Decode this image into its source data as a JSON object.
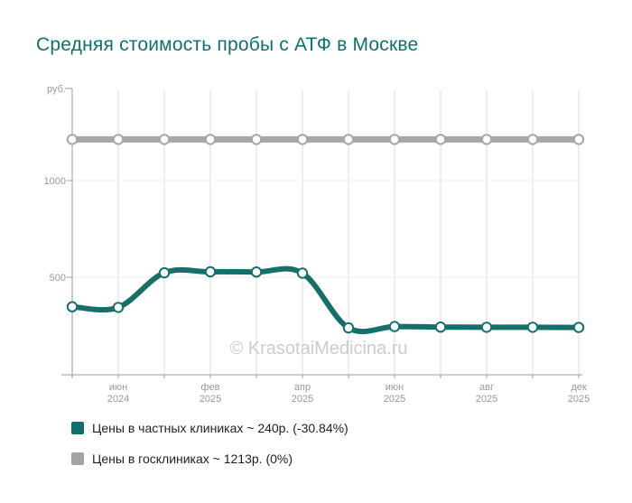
{
  "title": "Средняя стоимость пробы с АТФ в Москве",
  "watermark": "© KrasotaiMedicina.ru",
  "colors": {
    "background": "#ffffff",
    "title": "#0d7170",
    "private_series": "#176f6b",
    "state_series": "#a6a6a6",
    "axis": "#9e9e9e",
    "grid_vertical": "#dcdcdc",
    "grid_horizontal": "#ececec",
    "tick_label": "#999999",
    "watermark": "#cccccc",
    "legend_text": "#1f1f1f"
  },
  "chart_data": {
    "type": "line",
    "title": "Средняя стоимость пробы с АТФ в Москве",
    "xlabel": "",
    "ylabel": "руб.",
    "y_unit_label": "руб.",
    "ylim": [
      0,
      1465
    ],
    "y_grid_values": [
      1000,
      500
    ],
    "y_tick_labels": [
      "1000",
      "500"
    ],
    "grid": true,
    "legend_position": "bottom",
    "points_count": 12,
    "categories": [
      "",
      "июн 2024",
      "",
      "фев 2025",
      "",
      "апр 2025",
      "",
      "июн 2025",
      "",
      "авг 2025",
      "",
      "дек 2025"
    ],
    "x_ticks": [
      {
        "index": 1,
        "month": "июн",
        "year": "2024"
      },
      {
        "index": 3,
        "month": "фев",
        "year": "2025"
      },
      {
        "index": 5,
        "month": "апр",
        "year": "2025"
      },
      {
        "index": 7,
        "month": "июн",
        "year": "2025"
      },
      {
        "index": 9,
        "month": "авг",
        "year": "2025"
      },
      {
        "index": 11,
        "month": "дек",
        "year": "2025"
      }
    ],
    "series": [
      {
        "name": "Цены в госклиниках",
        "color": "#a6a6a6",
        "marker": "white-circle",
        "current_value": "1213р.",
        "change": "0%",
        "values": [
          1213,
          1213,
          1213,
          1213,
          1213,
          1213,
          1213,
          1213,
          1213,
          1213,
          1213,
          1213
        ]
      },
      {
        "name": "Цены в частных клиниках",
        "color": "#176f6b",
        "marker": "white-circle",
        "current_value": "240р.",
        "change": "-30.84%",
        "values": [
          347,
          344,
          523,
          528,
          527,
          521,
          238,
          245,
          242,
          241,
          241,
          240
        ]
      }
    ]
  },
  "legend": {
    "items": [
      {
        "label": "Цены в частных клиниках ~ 240р. (-30.84%)",
        "color": "#0f6f6b"
      },
      {
        "label": "Цены в госклиниках ~ 1213р. (0%)",
        "color": "#a3a3a3"
      }
    ]
  }
}
